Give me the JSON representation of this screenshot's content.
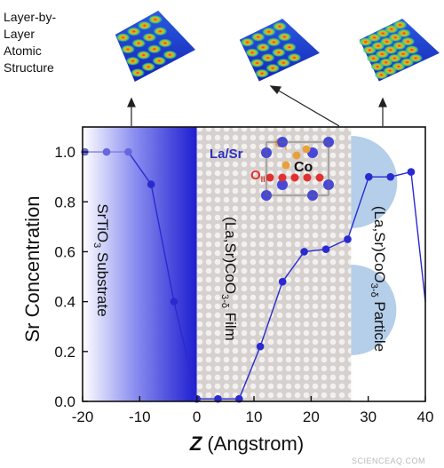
{
  "header": {
    "structure_title": [
      "Layer-by-",
      "Layer",
      "Atomic",
      "Structure"
    ]
  },
  "chart_data": {
    "type": "line",
    "xlabel_italic": "Z",
    "xlabel_rest": " (Angstrom)",
    "ylabel": "Sr Concentration",
    "xlim": [
      -20,
      40
    ],
    "ylim": [
      0.0,
      1.1
    ],
    "x_ticks": [
      -20,
      -10,
      0,
      10,
      20,
      30,
      40
    ],
    "x_tick_labels": [
      "-20",
      "-10",
      "0",
      "10",
      "20",
      "30",
      "40"
    ],
    "y_ticks": [
      0.0,
      0.2,
      0.4,
      0.6,
      0.8,
      1.0
    ],
    "y_tick_labels": [
      "0.0",
      "0.2",
      "0.4",
      "0.6",
      "0.8",
      "1.0"
    ],
    "series": [
      {
        "color": "#2a2ad0",
        "points": [
          {
            "x": -19.6,
            "y": 1.0,
            "style": "light"
          },
          {
            "x": -15.8,
            "y": 1.0,
            "style": "light"
          },
          {
            "x": -12.0,
            "y": 1.0,
            "style": "light"
          },
          {
            "x": -8.0,
            "y": 0.87,
            "style": "normal"
          },
          {
            "x": -4.0,
            "y": 0.4,
            "style": "normal"
          },
          {
            "x": 0.0,
            "y": 0.01,
            "style": "normal"
          },
          {
            "x": 3.7,
            "y": 0.01,
            "style": "normal"
          },
          {
            "x": 7.4,
            "y": 0.01,
            "style": "normal"
          },
          {
            "x": 11.1,
            "y": 0.22,
            "style": "normal"
          },
          {
            "x": 15.0,
            "y": 0.48,
            "style": "normal"
          },
          {
            "x": 18.8,
            "y": 0.6,
            "style": "normal"
          },
          {
            "x": 22.6,
            "y": 0.61,
            "style": "normal"
          },
          {
            "x": 26.4,
            "y": 0.65,
            "style": "normal"
          },
          {
            "x": 30.1,
            "y": 0.9,
            "style": "normal"
          },
          {
            "x": 33.9,
            "y": 0.9,
            "style": "normal"
          },
          {
            "x": 37.5,
            "y": 0.92,
            "style": "normal"
          },
          {
            "x": 40.0,
            "y": 0.4,
            "style": "none"
          }
        ]
      }
    ],
    "regions": {
      "substrate": {
        "x_from": -20,
        "x_to": 0,
        "label_main": "SrTiO",
        "label_sub": "3",
        "label_rest": " Substrate"
      },
      "film": {
        "x_from": 0,
        "x_to": 27,
        "label_main": "(La,Sr)CoO",
        "label_sub": "3-δ",
        "label_rest": " Film"
      },
      "particle": {
        "x_from": 27,
        "x_to": 40,
        "label_main": "(La,Sr)CoO",
        "label_sub": "3-δ",
        "label_rest": " Particle"
      }
    }
  },
  "inset": {
    "la_sr_label": "La/Sr",
    "oi_main": "O",
    "oi_sub": "I",
    "oii_main": "O",
    "oii_sub": "II",
    "co_label": "Co"
  },
  "watermark": "SCIENCEAQ.COM",
  "colors": {
    "series": "#2a2ad0",
    "substrate_dark": "#1e1ecf",
    "film_bg": "#d4cfcc",
    "particle": "#a8c6e6",
    "oxygen_red": "#e23030",
    "oxygen_orange": "#e8a13a"
  }
}
